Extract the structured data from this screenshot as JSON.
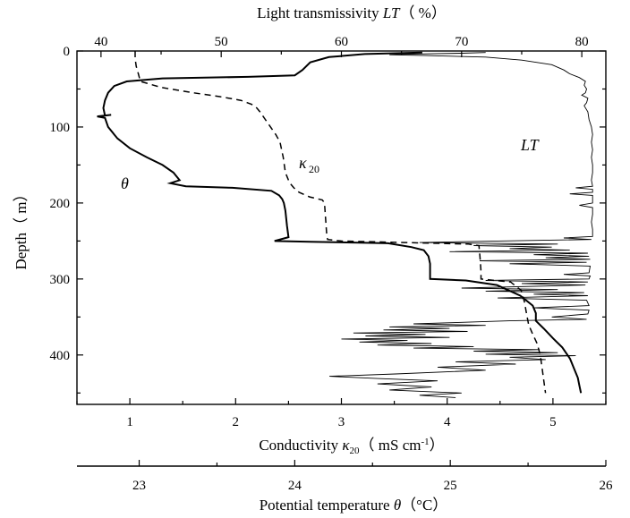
{
  "chart_data": {
    "type": "line",
    "axes": {
      "depth": {
        "title": "Depth（ m）",
        "range": [
          0,
          465
        ],
        "reversed": true,
        "ticks": [
          0,
          100,
          200,
          300,
          400
        ],
        "tick_labels": [
          "0",
          "100",
          "200",
          "300",
          "400"
        ]
      },
      "light_transmissivity": {
        "position": "top",
        "title": "Light transmissivity LT（ %）",
        "range": [
          38,
          82
        ],
        "ticks": [
          40,
          50,
          60,
          70,
          80
        ],
        "tick_labels": [
          "40",
          "50",
          "60",
          "70",
          "80"
        ]
      },
      "conductivity": {
        "position": "bottom",
        "title": "Conductivity κ20（ mS cm⁻¹）",
        "range": [
          0.5,
          5.5
        ],
        "ticks": [
          1,
          2,
          3,
          4,
          5
        ],
        "tick_labels": [
          "1",
          "2",
          "3",
          "4",
          "5"
        ]
      },
      "potential_temperature": {
        "position": "bottom-offset",
        "title": "Potential temperature θ（°C）",
        "range": [
          22.6,
          26.0
        ],
        "ticks": [
          23,
          24,
          25,
          26
        ],
        "tick_labels": [
          "23",
          "24",
          "25",
          "26"
        ]
      }
    },
    "annotations": {
      "theta": "θ",
      "kappa": "κ",
      "kappa_sub": "20",
      "lt": "LT"
    },
    "series": [
      {
        "key": "theta",
        "axis": "potential_temperature",
        "style": "solid-thick",
        "points": [
          [
            24.82,
            2
          ],
          [
            24.45,
            4
          ],
          [
            24.22,
            8
          ],
          [
            24.1,
            15
          ],
          [
            24.05,
            25
          ],
          [
            24.0,
            32
          ],
          [
            23.7,
            34
          ],
          [
            23.15,
            36
          ],
          [
            22.92,
            40
          ],
          [
            22.84,
            46
          ],
          [
            22.8,
            55
          ],
          [
            22.78,
            65
          ],
          [
            22.77,
            75
          ],
          [
            22.78,
            85
          ],
          [
            22.82,
            84
          ],
          [
            22.73,
            86
          ],
          [
            22.78,
            88
          ],
          [
            22.8,
            100
          ],
          [
            22.86,
            115
          ],
          [
            22.94,
            128
          ],
          [
            23.05,
            140
          ],
          [
            23.15,
            150
          ],
          [
            23.22,
            160
          ],
          [
            23.26,
            170
          ],
          [
            23.2,
            174
          ],
          [
            23.3,
            178
          ],
          [
            23.6,
            180
          ],
          [
            23.85,
            184
          ],
          [
            23.9,
            190
          ],
          [
            23.92,
            195
          ],
          [
            23.93,
            200
          ],
          [
            23.94,
            210
          ],
          [
            23.95,
            230
          ],
          [
            23.96,
            245
          ],
          [
            23.87,
            250
          ],
          [
            24.1,
            251
          ],
          [
            24.6,
            253
          ],
          [
            24.75,
            258
          ],
          [
            24.83,
            262
          ],
          [
            24.86,
            270
          ],
          [
            24.87,
            280
          ],
          [
            24.87,
            290
          ],
          [
            24.87,
            300
          ],
          [
            25.1,
            302
          ],
          [
            25.3,
            308
          ],
          [
            25.45,
            322
          ],
          [
            25.53,
            335
          ],
          [
            25.55,
            345
          ],
          [
            25.55,
            355
          ],
          [
            25.6,
            365
          ],
          [
            25.66,
            378
          ],
          [
            25.72,
            390
          ],
          [
            25.77,
            405
          ],
          [
            25.8,
            420
          ],
          [
            25.82,
            430
          ],
          [
            25.83,
            440
          ],
          [
            25.84,
            450
          ]
        ]
      },
      {
        "key": "conductivity",
        "axis": "conductivity",
        "style": "dashed",
        "points": [
          [
            1.05,
            0
          ],
          [
            1.05,
            10
          ],
          [
            1.06,
            20
          ],
          [
            1.08,
            30
          ],
          [
            1.1,
            40
          ],
          [
            1.3,
            48
          ],
          [
            1.6,
            55
          ],
          [
            1.85,
            60
          ],
          [
            2.05,
            65
          ],
          [
            2.15,
            70
          ],
          [
            2.2,
            75
          ],
          [
            2.23,
            80
          ],
          [
            2.28,
            90
          ],
          [
            2.33,
            100
          ],
          [
            2.38,
            110
          ],
          [
            2.42,
            120
          ],
          [
            2.45,
            140
          ],
          [
            2.47,
            160
          ],
          [
            2.5,
            170
          ],
          [
            2.52,
            175
          ],
          [
            2.55,
            180
          ],
          [
            2.6,
            186
          ],
          [
            2.7,
            192
          ],
          [
            2.82,
            196
          ],
          [
            2.84,
            200
          ],
          [
            2.85,
            220
          ],
          [
            2.86,
            240
          ],
          [
            2.87,
            248
          ],
          [
            3.0,
            250
          ],
          [
            3.6,
            252
          ],
          [
            4.2,
            254
          ],
          [
            4.3,
            256
          ],
          [
            4.31,
            270
          ],
          [
            4.32,
            290
          ],
          [
            4.32,
            300
          ],
          [
            4.45,
            302
          ],
          [
            4.6,
            304
          ],
          [
            4.7,
            315
          ],
          [
            4.73,
            330
          ],
          [
            4.75,
            345
          ],
          [
            4.77,
            360
          ],
          [
            4.8,
            370
          ],
          [
            4.85,
            385
          ],
          [
            4.88,
            400
          ],
          [
            4.9,
            420
          ],
          [
            4.92,
            440
          ],
          [
            4.93,
            450
          ]
        ]
      },
      {
        "key": "light_transmissivity",
        "axis": "light_transmissivity",
        "style": "solid-thin",
        "points": [
          [
            72.0,
            2
          ],
          [
            70.0,
            3
          ],
          [
            66.0,
            4
          ],
          [
            64.0,
            5
          ],
          [
            67.0,
            6
          ],
          [
            72.0,
            8
          ],
          [
            75.0,
            12
          ],
          [
            77.5,
            18
          ],
          [
            78.5,
            25
          ],
          [
            79.0,
            30
          ],
          [
            79.8,
            35
          ],
          [
            80.3,
            40
          ],
          [
            80.2,
            45
          ],
          [
            80.4,
            50
          ],
          [
            80.3,
            55
          ],
          [
            80.0,
            58
          ],
          [
            80.5,
            62
          ],
          [
            80.4,
            68
          ],
          [
            80.2,
            72
          ],
          [
            80.5,
            80
          ],
          [
            80.6,
            90
          ],
          [
            80.8,
            100
          ],
          [
            80.9,
            110
          ],
          [
            80.8,
            120
          ],
          [
            80.9,
            130
          ],
          [
            80.8,
            140
          ],
          [
            80.9,
            150
          ],
          [
            80.9,
            160
          ],
          [
            80.8,
            170
          ],
          [
            80.9,
            178
          ],
          [
            79.5,
            180
          ],
          [
            80.9,
            182
          ],
          [
            80.9,
            186
          ],
          [
            79.0,
            188
          ],
          [
            80.9,
            190
          ],
          [
            80.9,
            200
          ],
          [
            79.8,
            203
          ],
          [
            80.9,
            206
          ],
          [
            80.9,
            215
          ],
          [
            80.8,
            225
          ],
          [
            80.9,
            235
          ],
          [
            80.9,
            244
          ],
          [
            78.5,
            246
          ],
          [
            80.8,
            248
          ],
          [
            73.0,
            250
          ],
          [
            66.5,
            252
          ],
          [
            78.0,
            254
          ],
          [
            71.0,
            256
          ],
          [
            77.5,
            258
          ],
          [
            74.0,
            260
          ],
          [
            79.0,
            262
          ],
          [
            69.0,
            264
          ],
          [
            80.5,
            266
          ],
          [
            76.0,
            268
          ],
          [
            80.6,
            270
          ],
          [
            77.0,
            272
          ],
          [
            80.7,
            274
          ],
          [
            71.5,
            276
          ],
          [
            80.4,
            278
          ],
          [
            74.0,
            280
          ],
          [
            80.7,
            283
          ],
          [
            80.6,
            292
          ],
          [
            78.5,
            294
          ],
          [
            80.7,
            296
          ],
          [
            80.6,
            300
          ],
          [
            72.0,
            302
          ],
          [
            80.5,
            304
          ],
          [
            75.0,
            306
          ],
          [
            80.3,
            308
          ],
          [
            70.0,
            312
          ],
          [
            78.0,
            314
          ],
          [
            72.0,
            316
          ],
          [
            80.2,
            318
          ],
          [
            76.0,
            320
          ],
          [
            80.5,
            322
          ],
          [
            73.0,
            325
          ],
          [
            80.4,
            328
          ],
          [
            80.6,
            335
          ],
          [
            76.0,
            338
          ],
          [
            80.6,
            341
          ],
          [
            80.5,
            346
          ],
          [
            77.5,
            350
          ],
          [
            80.4,
            353
          ],
          [
            74.0,
            355
          ],
          [
            70.0,
            357
          ],
          [
            66.0,
            359
          ],
          [
            72.0,
            361
          ],
          [
            64.0,
            363
          ],
          [
            69.0,
            365
          ],
          [
            63.5,
            367
          ],
          [
            70.5,
            369
          ],
          [
            61.0,
            371
          ],
          [
            67.0,
            373
          ],
          [
            62.0,
            375
          ],
          [
            69.0,
            377
          ],
          [
            60.0,
            379
          ],
          [
            65.5,
            381
          ],
          [
            61.5,
            383
          ],
          [
            67.5,
            385
          ],
          [
            63.0,
            387
          ],
          [
            71.0,
            389
          ],
          [
            66.0,
            391
          ],
          [
            76.5,
            393
          ],
          [
            71.0,
            395
          ],
          [
            78.0,
            397
          ],
          [
            72.0,
            399
          ],
          [
            79.5,
            401
          ],
          [
            74.0,
            403
          ],
          [
            77.0,
            406
          ],
          [
            69.5,
            409
          ],
          [
            74.5,
            412
          ],
          [
            68.0,
            416
          ],
          [
            72.0,
            420
          ],
          [
            64.5,
            425
          ],
          [
            59.0,
            428
          ],
          [
            63.0,
            431
          ],
          [
            68.0,
            434
          ],
          [
            63.0,
            438
          ],
          [
            67.5,
            442
          ],
          [
            64.0,
            446
          ],
          [
            70.0,
            450
          ],
          [
            66.5,
            453
          ],
          [
            69.5,
            456
          ]
        ]
      }
    ]
  }
}
